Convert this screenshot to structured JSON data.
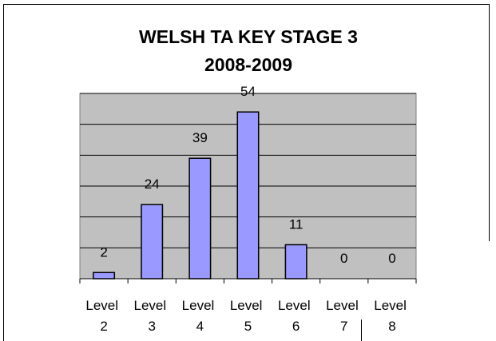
{
  "chart_data": {
    "type": "bar",
    "title": "WELSH TA KEY STAGE 3",
    "subtitle": "2008-2009",
    "categories": [
      "Level 2",
      "Level 3",
      "Level 4",
      "Level 5",
      "Level 6",
      "Level 7",
      "Level 8"
    ],
    "values": [
      2,
      24,
      39,
      54,
      11,
      0,
      0
    ],
    "color": "#9999ff",
    "ylim": [
      0,
      60
    ],
    "yticks": [
      0,
      10,
      20,
      30,
      40,
      50,
      60
    ],
    "grid": true
  }
}
